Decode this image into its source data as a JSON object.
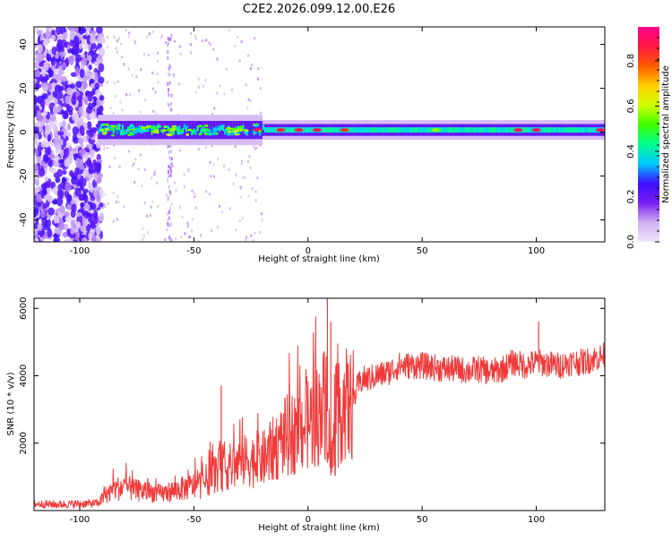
{
  "page": {
    "title": "C2E2.2026.099.12.00.E26"
  },
  "chart_data": [
    {
      "type": "heatmap",
      "title": "C2E2.2026.099.12.00.E26",
      "xlabel": "Height of straight line (km)",
      "ylabel": "Frequency (Hz)",
      "xlim": [
        -120,
        130
      ],
      "ylim": [
        -50,
        48
      ],
      "xticks": [
        -100,
        -50,
        0,
        50,
        100
      ],
      "xtick_labels": [
        "-100",
        "-50",
        "0",
        "50",
        "100"
      ],
      "yticks": [
        -40,
        -20,
        0,
        20,
        40
      ],
      "ytick_labels": [
        "-40",
        "-20",
        "0",
        "20",
        "40"
      ],
      "colorbar": {
        "label": "Normalized spectral amplitude",
        "range": [
          0,
          0.95
        ],
        "ticks": [
          0.0,
          0.2,
          0.4,
          0.6,
          0.8
        ],
        "tick_labels": [
          "0.0",
          "0.2",
          "0.4",
          "0.6",
          "0.8"
        ],
        "colors": [
          "#f0e6fa",
          "#d0b0f4",
          "#7a1cf0",
          "#3d10ff",
          "#00c8ff",
          "#00ff90",
          "#40ff00",
          "#d0ff00",
          "#ffd000",
          "#ff5a00",
          "#ff1840",
          "#ff0090"
        ]
      },
      "features": {
        "noise_region_x": [
          -120,
          -90
        ],
        "band_center_hz": 1,
        "band_halfwidth_hz": 3,
        "vertical_streak_x": [
          -62,
          -60
        ]
      }
    },
    {
      "type": "line",
      "xlabel": "Height of straight line (km)",
      "ylabel": "SNR (10 * v/v)",
      "xlim": [
        -120,
        130
      ],
      "ylim": [
        0,
        6300
      ],
      "xticks": [
        -100,
        -50,
        0,
        50,
        100
      ],
      "xtick_labels": [
        "-100",
        "-50",
        "0",
        "50",
        "100"
      ],
      "yticks": [
        2000,
        4000,
        6000
      ],
      "ytick_labels": [
        "2000",
        "4000",
        "6000"
      ],
      "line_color": "#f03a3a",
      "series": [
        {
          "name": "SNR",
          "x": [
            -120,
            -110,
            -100,
            -92,
            -88,
            -84,
            -80,
            -76,
            -70,
            -64,
            -58,
            -52,
            -46,
            -40,
            -34,
            -30,
            -26,
            -22,
            -18,
            -14,
            -10,
            -6,
            -2,
            2,
            6,
            8,
            10,
            12,
            14,
            16,
            18,
            20,
            22,
            24,
            26,
            30,
            35,
            40,
            45,
            50,
            55,
            60,
            65,
            70,
            75,
            80,
            85,
            90,
            95,
            100,
            105,
            110,
            115,
            120,
            125,
            130
          ],
          "values": [
            200,
            180,
            200,
            220,
            500,
            650,
            700,
            600,
            550,
            500,
            600,
            700,
            800,
            1200,
            1300,
            1400,
            1500,
            1450,
            1600,
            1900,
            2200,
            2300,
            2500,
            2700,
            2900,
            3500,
            1300,
            2200,
            3000,
            3200,
            3000,
            3300,
            3700,
            3900,
            3900,
            4000,
            4100,
            4300,
            4300,
            4300,
            4250,
            4200,
            4200,
            4150,
            4200,
            4100,
            4200,
            4400,
            4300,
            4400,
            4350,
            4300,
            4400,
            4400,
            4500,
            4600
          ]
        }
      ],
      "spikes": [
        {
          "x": 8.5,
          "value": 6300
        },
        {
          "x": 10,
          "value": 5600
        },
        {
          "x": -38,
          "value": 3700
        },
        {
          "x": 101,
          "value": 5600
        }
      ]
    }
  ]
}
